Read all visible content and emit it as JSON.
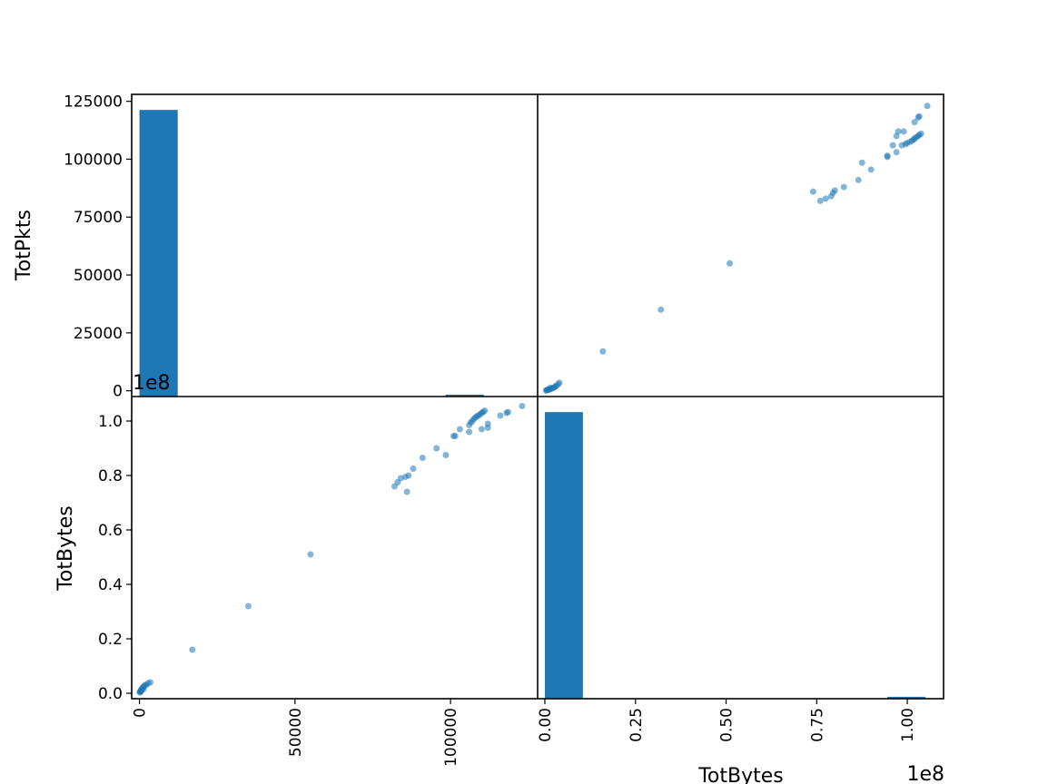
{
  "chart_data": {
    "type": "scatter_matrix",
    "variables": [
      "TotPkts",
      "TotBytes"
    ],
    "colors": {
      "marker": "#1f77b4",
      "axes": "#000000",
      "background": "#ffffff"
    },
    "panels": [
      {
        "position": "top-left",
        "type": "histogram",
        "variable": "TotPkts",
        "bins": [
          {
            "x0": 0,
            "x1": 12300,
            "count": 120000
          },
          {
            "x0": 98400,
            "x1": 110700,
            "count": 800
          }
        ]
      },
      {
        "position": "top-right",
        "type": "scatter",
        "x_variable": "TotBytes",
        "y_variable": "TotPkts",
        "mirrored_from": "bottom-left"
      },
      {
        "position": "bottom-left",
        "type": "scatter",
        "x_variable": "TotPkts",
        "y_variable": "TotBytes",
        "points": [
          [
            100,
            300000
          ],
          [
            250,
            600000
          ],
          [
            400,
            1000000
          ],
          [
            600,
            1300000
          ],
          [
            800,
            1600000
          ],
          [
            1000,
            2000000
          ],
          [
            1200,
            2300000
          ],
          [
            1500,
            2600000
          ],
          [
            1800,
            3000000
          ],
          [
            2200,
            3100000
          ],
          [
            2800,
            3700000
          ],
          [
            3500,
            4000000
          ],
          [
            500,
            800000
          ],
          [
            1300,
            1500000
          ],
          [
            300,
            500000
          ],
          [
            17000,
            16000000
          ],
          [
            35000,
            32000000
          ],
          [
            55000,
            51000000
          ],
          [
            82000,
            76000000
          ],
          [
            83000,
            77500000
          ],
          [
            84000,
            79000000
          ],
          [
            85500,
            79500000
          ],
          [
            86000,
            74000000
          ],
          [
            86500,
            80000000
          ],
          [
            88000,
            82500000
          ],
          [
            91000,
            86500000
          ],
          [
            95500,
            90000000
          ],
          [
            98500,
            87500000
          ],
          [
            101000,
            94500000
          ],
          [
            101500,
            94500000
          ],
          [
            103000,
            97000000
          ],
          [
            106000,
            96000000
          ],
          [
            106000,
            98500000
          ],
          [
            106500,
            99500000
          ],
          [
            107000,
            100000000
          ],
          [
            107500,
            100800000
          ],
          [
            108000,
            101300000
          ],
          [
            108500,
            101800000
          ],
          [
            109000,
            102000000
          ],
          [
            109500,
            102500000
          ],
          [
            110000,
            103000000
          ],
          [
            110500,
            103300000
          ],
          [
            111000,
            103800000
          ],
          [
            110000,
            97000000
          ],
          [
            112000,
            97500000
          ],
          [
            112000,
            99000000
          ],
          [
            116000,
            102000000
          ],
          [
            118000,
            103000000
          ],
          [
            118500,
            103300000
          ],
          [
            123000,
            105500000
          ]
        ]
      },
      {
        "position": "bottom-right",
        "type": "histogram",
        "variable": "TotBytes",
        "bins": [
          {
            "x0": 0,
            "x1": 10500000,
            "count": 120000
          },
          {
            "x0": 94500000,
            "x1": 105000000,
            "count": 800
          }
        ]
      }
    ],
    "axes": {
      "TotPkts": {
        "range": [
          -2500,
          128000
        ],
        "y_ticks": [
          0,
          25000,
          50000,
          75000,
          100000,
          125000
        ],
        "y_tick_labels": [
          "0",
          "25000",
          "50000",
          "75000",
          "100000",
          "125000"
        ],
        "x_ticks": [
          0,
          50000,
          100000
        ],
        "x_tick_labels": [
          "0",
          "50000",
          "100000"
        ]
      },
      "TotBytes": {
        "range": [
          -2000000,
          110000000
        ],
        "range_y": [
          -2000000,
          109000000
        ],
        "scale_label": "1e8",
        "y_ticks": [
          0,
          20000000,
          40000000,
          60000000,
          80000000,
          100000000
        ],
        "y_tick_labels": [
          "0.0",
          "0.2",
          "0.4",
          "0.6",
          "0.8",
          "1.0"
        ],
        "x_ticks": [
          0,
          25000000,
          50000000,
          75000000,
          100000000
        ],
        "x_tick_labels": [
          "0.00",
          "0.25",
          "0.50",
          "0.75",
          "1.00"
        ]
      }
    },
    "hist_count_max": 125000,
    "axis_labels": {
      "left_top": "TotPkts",
      "left_bottom": "TotBytes",
      "bottom_right": "TotBytes"
    }
  }
}
